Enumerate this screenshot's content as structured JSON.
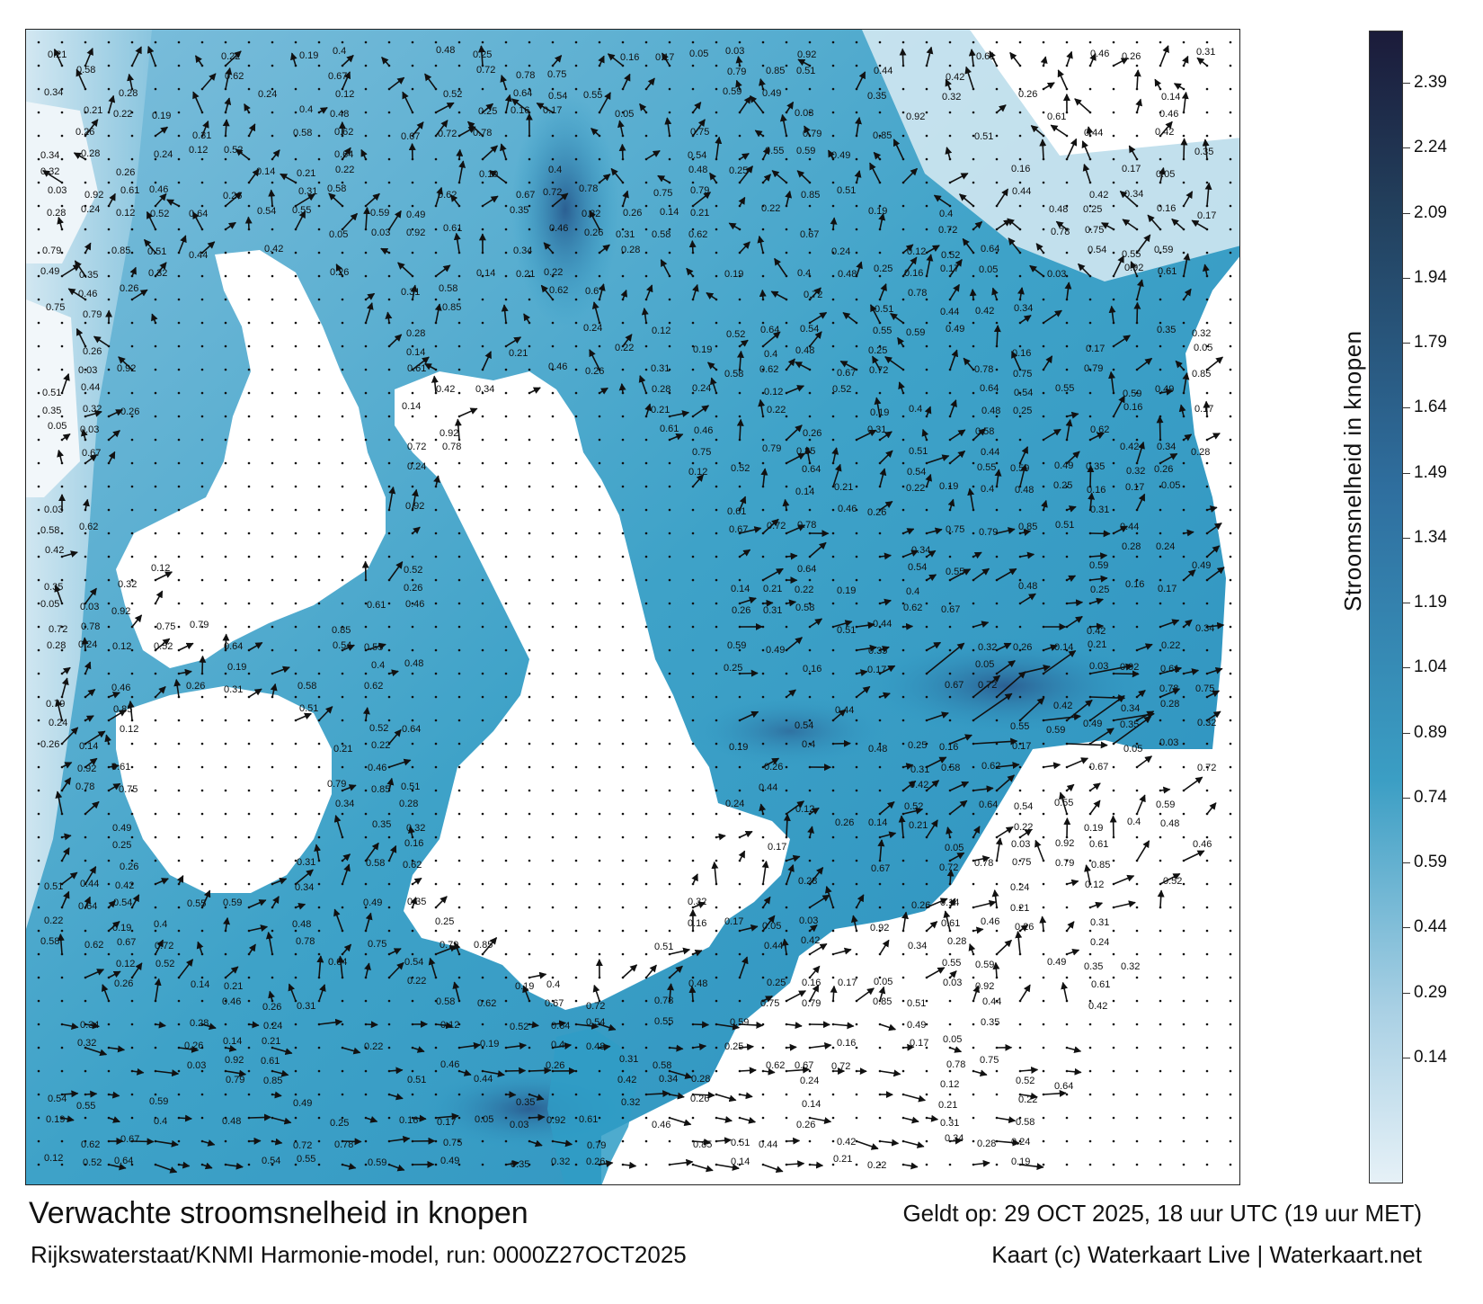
{
  "title": "Verwachte stroomsnelheid in knopen",
  "subtitle": "Rijkswaterstaat/KNMI Harmonie-model, run: 0000Z27OCT2025",
  "valid_time": "Geldt op: 29 OCT 2025, 18 uur UTC (19 uur MET)",
  "credit": "Kaart (c) Waterkaart Live | Waterkaart.net",
  "colorbar": {
    "title": "Stroomsnelheid in knopen",
    "ticks": [
      "2.39",
      "2.24",
      "2.09",
      "1.94",
      "1.79",
      "1.64",
      "1.49",
      "1.34",
      "1.19",
      "1.04",
      "0.89",
      "0.74",
      "0.59",
      "0.44",
      "0.29",
      "0.14"
    ],
    "colors": {
      "light": "#e6f1f7",
      "low": "#a9d0e4",
      "mid": "#3b9ec4",
      "high": "#2f6f9f",
      "dark": "#223f5c",
      "max": "#1b1b3a"
    }
  },
  "map": {
    "sea_color": "#2f9cc6",
    "land_color": "#ffffff",
    "sample_labels": [
      {
        "text": "0.21"
      },
      {
        "text": "0.22"
      },
      {
        "text": "0.19"
      },
      {
        "text": "0.4"
      },
      {
        "text": "0.48"
      },
      {
        "text": "0.25"
      },
      {
        "text": "0.16"
      },
      {
        "text": "0.17"
      },
      {
        "text": "0.05"
      },
      {
        "text": "0.03"
      },
      {
        "text": "0.92"
      },
      {
        "text": "0.61"
      },
      {
        "text": "0.46"
      },
      {
        "text": "0.26"
      },
      {
        "text": "0.31"
      },
      {
        "text": "0.58"
      },
      {
        "text": "0.62"
      },
      {
        "text": "0.67"
      },
      {
        "text": "0.72"
      },
      {
        "text": "0.78"
      },
      {
        "text": "0.75"
      },
      {
        "text": "0.79"
      },
      {
        "text": "0.85"
      },
      {
        "text": "0.51"
      },
      {
        "text": "0.44"
      },
      {
        "text": "0.42"
      },
      {
        "text": "0.34"
      },
      {
        "text": "0.28"
      },
      {
        "text": "0.24"
      },
      {
        "text": "0.12"
      },
      {
        "text": "0.52"
      },
      {
        "text": "0.64"
      },
      {
        "text": "0.54"
      },
      {
        "text": "0.55"
      },
      {
        "text": "0.59"
      },
      {
        "text": "0.49"
      },
      {
        "text": "0.35"
      },
      {
        "text": "0.32"
      },
      {
        "text": "0.26"
      },
      {
        "text": "0.14"
      }
    ]
  }
}
